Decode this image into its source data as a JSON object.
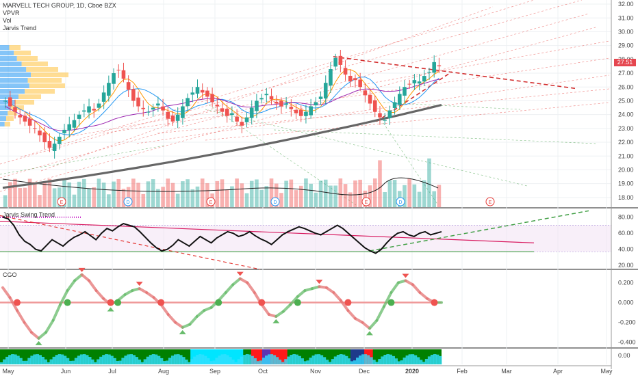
{
  "legend": {
    "title": "MARVELL TECH GROUP, 1D, Cboe BZX",
    "lines": [
      "VPVR",
      "Vol",
      "Jarvis Trend"
    ]
  },
  "panes": {
    "swing_label": "Jarvis Swing Trend",
    "cgo_label": "CGO"
  },
  "price_tag": "27.51",
  "colors": {
    "up": "#26a69a",
    "down": "#ef5350",
    "ma_black": "#222222",
    "ma_purple": "#9c27b0",
    "ma_blue": "#2196f3",
    "ma_orange": "#ff9800",
    "trend_red": "#e53935",
    "trend_green": "#43a047"
  },
  "chart_data": [
    {
      "type": "candlestick",
      "name": "price",
      "x_ticks": [
        "May",
        "Jun",
        "Jul",
        "Aug",
        "Sep",
        "Oct",
        "Nov",
        "Dec",
        "2020",
        "Feb",
        "Mar",
        "Apr",
        "May"
      ],
      "y_ticks": [
        18.0,
        19.0,
        20.0,
        21.0,
        22.0,
        23.0,
        24.0,
        25.0,
        26.0,
        27.0,
        28.0,
        29.0,
        30.0,
        31.0,
        32.0
      ],
      "ylim": [
        17.3,
        32.3
      ],
      "last_price": 27.51,
      "earnings_markers": [
        "E",
        "D",
        "E",
        "D",
        "E",
        "D",
        "E"
      ],
      "close_path": [
        25.0,
        24.6,
        24.2,
        23.8,
        23.5,
        23.2,
        23.0,
        22.5,
        22.0,
        21.6,
        21.9,
        22.4,
        22.9,
        23.3,
        23.6,
        24.0,
        24.3,
        24.6,
        24.3,
        24.8,
        25.6,
        26.3,
        27.0,
        27.2,
        26.6,
        25.8,
        25.0,
        24.6,
        24.4,
        24.2,
        24.5,
        24.8,
        24.3,
        23.7,
        23.5,
        24.0,
        24.6,
        25.2,
        25.6,
        26.0,
        25.6,
        25.3,
        24.9,
        24.6,
        24.2,
        23.9,
        24.1,
        23.5,
        23.2,
        23.8,
        24.5,
        25.0,
        25.2,
        25.5,
        25.1,
        24.8,
        24.6,
        24.8,
        24.4,
        24.1,
        23.9,
        24.2,
        24.6,
        24.9,
        25.3,
        26.3,
        27.3,
        28.1,
        27.6,
        26.9,
        26.4,
        26.5,
        26.0,
        25.4,
        24.8,
        24.2,
        23.8,
        23.6,
        24.3,
        24.9,
        25.5,
        26.0,
        26.2,
        26.5,
        26.4,
        26.8,
        27.1,
        27.8,
        27.5
      ],
      "volume_max": 1.0,
      "sma200_start": 18.7,
      "sma200_end": 24.7
    },
    {
      "type": "line",
      "name": "Jarvis Swing Trend",
      "y_ticks": [
        20.0,
        40.0,
        60.0,
        80.0
      ],
      "ylim": [
        15,
        90
      ],
      "values": [
        80,
        78,
        70,
        58,
        50,
        46,
        40,
        38,
        45,
        52,
        48,
        44,
        50,
        55,
        58,
        62,
        57,
        52,
        60,
        66,
        63,
        68,
        72,
        70,
        68,
        62,
        55,
        48,
        42,
        38,
        40,
        45,
        52,
        48,
        44,
        50,
        56,
        52,
        48,
        54,
        58,
        62,
        60,
        56,
        58,
        62,
        57,
        53,
        50,
        46,
        52,
        58,
        62,
        65,
        68,
        66,
        63,
        60,
        58,
        62,
        66,
        70,
        66,
        60,
        54,
        48,
        42,
        38,
        35,
        40,
        48,
        55,
        60,
        62,
        58,
        56,
        60,
        62,
        58,
        60,
        62
      ],
      "upper_band": 70,
      "lower_band": 37
    },
    {
      "type": "line",
      "name": "CGO",
      "y_ticks": [
        -0.4,
        -0.2,
        0.0,
        0.2
      ],
      "ylim": [
        -0.45,
        0.32
      ],
      "values": [
        0.15,
        0.05,
        -0.08,
        -0.2,
        -0.3,
        -0.36,
        -0.3,
        -0.18,
        -0.02,
        0.12,
        0.22,
        0.28,
        0.22,
        0.12,
        0.04,
        -0.02,
        0.02,
        0.08,
        0.12,
        0.14,
        0.1,
        0.05,
        -0.02,
        -0.12,
        -0.2,
        -0.25,
        -0.22,
        -0.14,
        -0.08,
        -0.05,
        0.02,
        0.1,
        0.18,
        0.24,
        0.2,
        0.1,
        -0.02,
        -0.12,
        -0.14,
        -0.09,
        -0.02,
        0.06,
        0.12,
        0.14,
        0.16,
        0.15,
        0.1,
        0.02,
        -0.08,
        -0.16,
        -0.2,
        -0.26,
        -0.18,
        -0.04,
        0.1,
        0.2,
        0.22,
        0.18,
        0.1,
        0.04,
        0.0,
        0.0
      ]
    }
  ]
}
